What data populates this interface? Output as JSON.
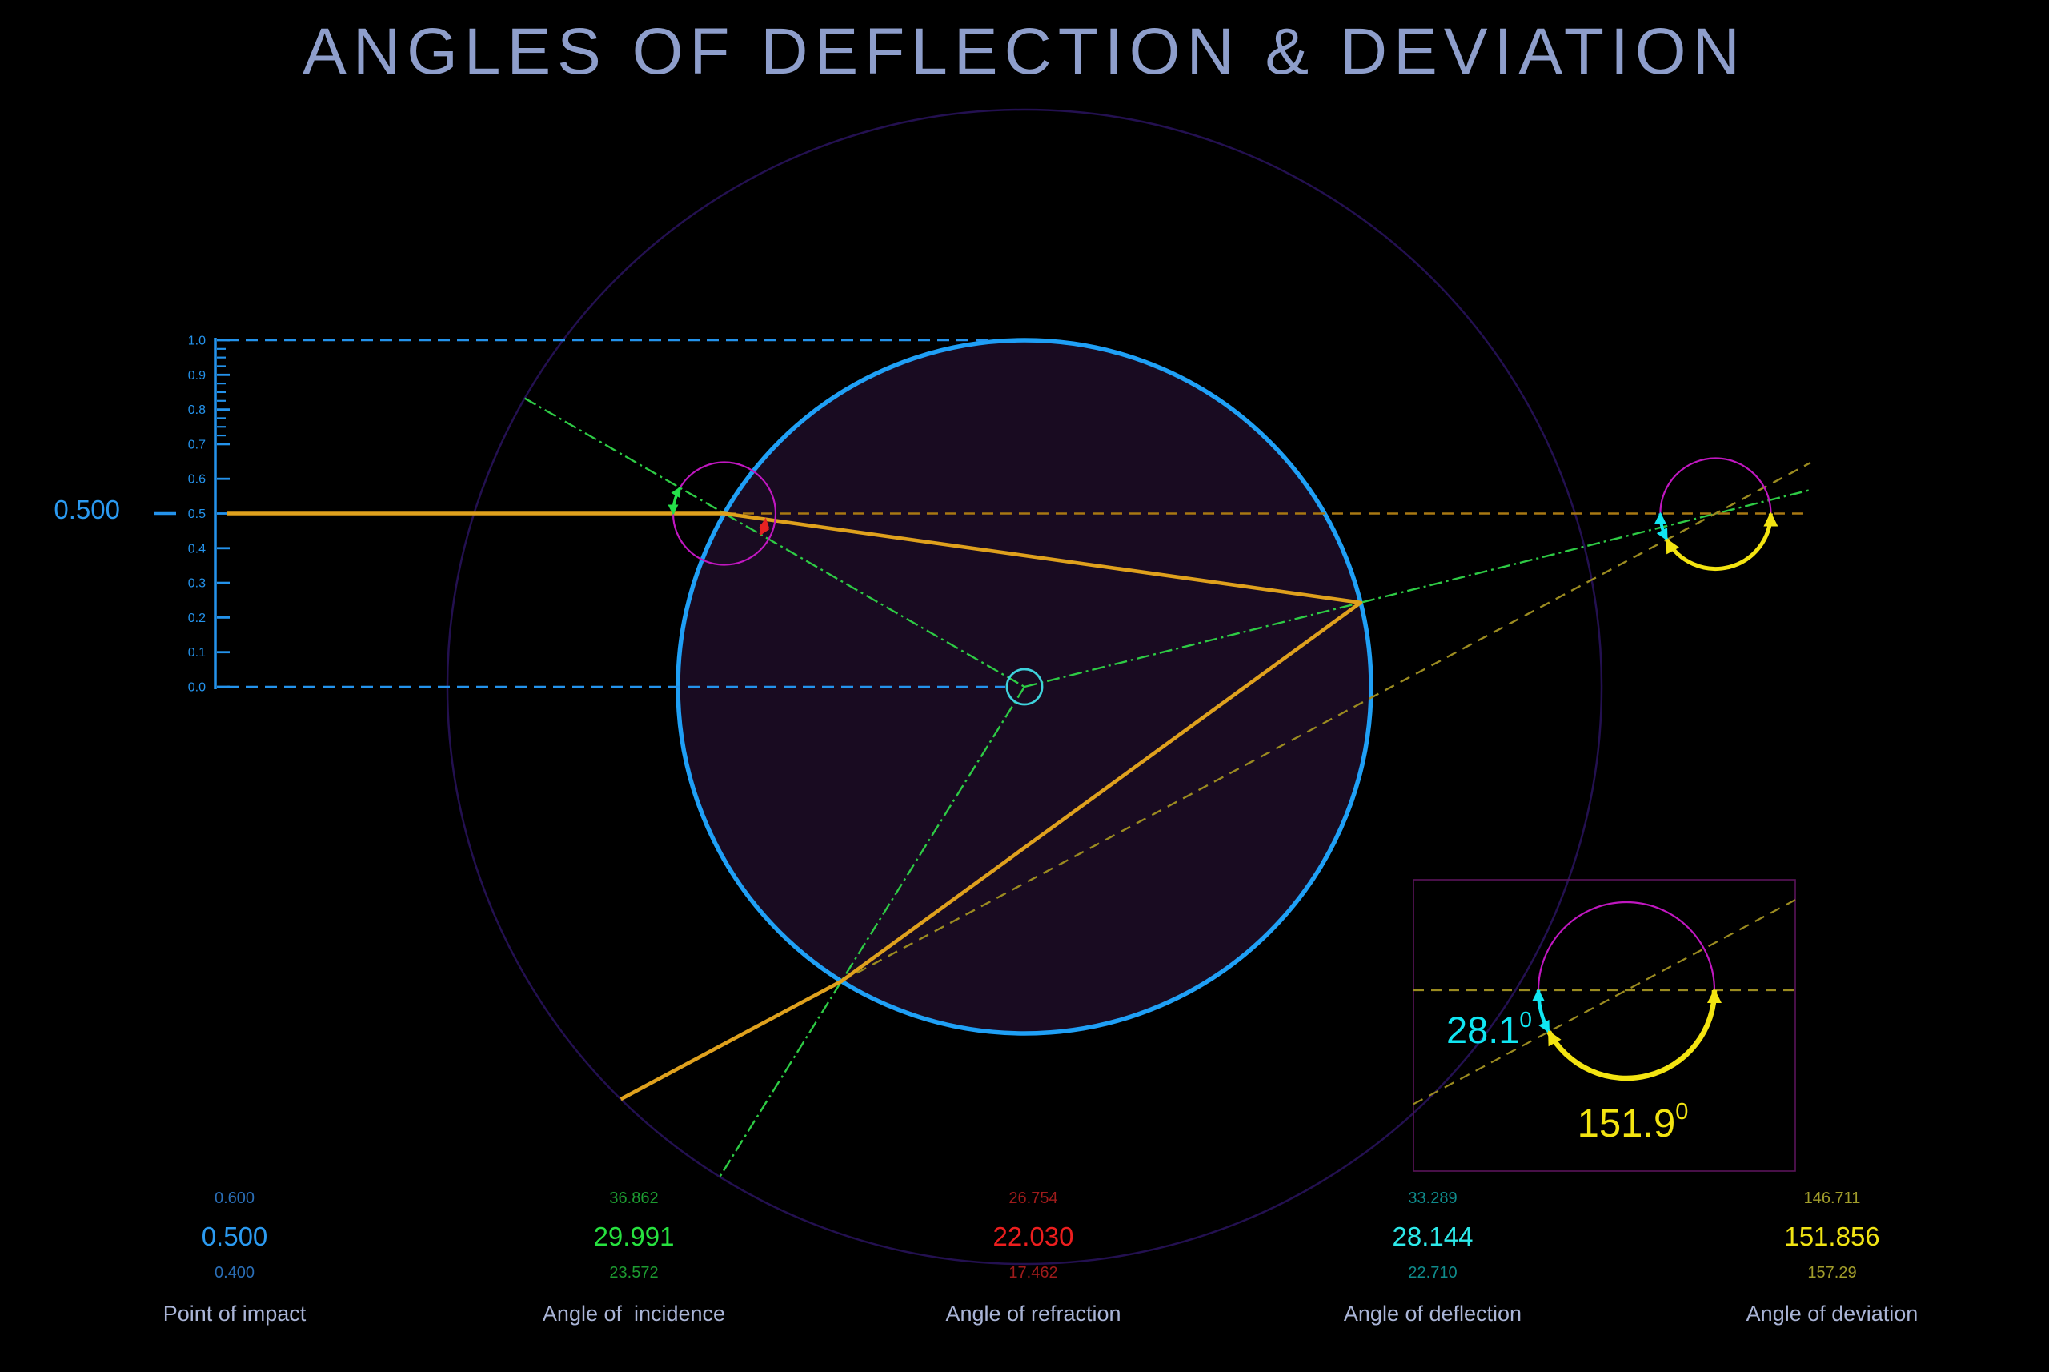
{
  "title": "ANGLES OF DEFLECTION & DEVIATION",
  "scale": {
    "tick_labels": [
      "1.0",
      "0.9",
      "0.8",
      "0.7",
      "0.6",
      "0.5",
      "0.4",
      "0.3",
      "0.2",
      "0.1",
      "0.0"
    ],
    "minor_tick_step": 0.025,
    "minor_tick_range": [
      0.7,
      1.0
    ],
    "current_value_label": "0.500"
  },
  "chart_data": {
    "type": "ray-diagram",
    "title": "ANGLES OF DEFLECTION & DEVIATION",
    "description": "Light ray entering a spherical drop at impact parameter 0.5: refraction at entry, one internal reflection, refraction at exit. Normals shown as green dash-dot lines; deflection (cyan) and deviation (yellow) angles measured between the undeviated path and the exit ray extension.",
    "point_of_impact": 0.5,
    "angles_deg": {
      "incidence": 29.991,
      "refraction": 22.03,
      "deflection": 28.144,
      "deviation": 151.856
    },
    "readouts": [
      {
        "id": "impact",
        "above": "0.600",
        "value": "0.500",
        "below": "0.400",
        "label": "Point of impact",
        "color": "#2b9af0",
        "dim_color": "#2a6fb8"
      },
      {
        "id": "incidence",
        "above": "36.862",
        "value": "29.991",
        "below": "23.572",
        "label": "Angle of  incidence",
        "color": "#27e23f",
        "dim_color": "#1d9b31"
      },
      {
        "id": "refraction",
        "above": "26.754",
        "value": "22.030",
        "below": "17.462",
        "label": "Angle of refraction",
        "color": "#ed1e1e",
        "dim_color": "#9e1b1b"
      },
      {
        "id": "deflection",
        "above": "33.289",
        "value": "28.144",
        "below": "22.710",
        "label": "Angle of deflection",
        "color": "#2de9e9",
        "dim_color": "#0f8b8b"
      },
      {
        "id": "deviation",
        "above": "146.711",
        "value": "151.856",
        "below": "157.29",
        "label": "Angle of deviation",
        "color": "#f1e414",
        "dim_color": "#a19d2b"
      }
    ],
    "inset": {
      "deflection_label": "28.1",
      "deviation_label": "151.9",
      "degree_sup": "0"
    }
  },
  "colors": {
    "background": "#000000",
    "title_text": "#8e9ecb",
    "label_text": "#a9b4d6",
    "axis_blue": "#2493ec",
    "drop_stroke": "#1fa0f6",
    "drop_fill": "#190b21",
    "outer_circle": "#231050",
    "ray_orange": "#dfa11d",
    "ray_orange_dashed": "#a87812",
    "deviation_dashed": "#9b8b20",
    "normal_green": "#2ecb45",
    "incidence_arc": "#25e04a",
    "refraction_arc": "#e62222",
    "protractor_magenta": "#c017c0",
    "center_circle": "#3fd2dc",
    "deflection_cyan": "#10e6f2",
    "deviation_yellow": "#f3e411",
    "inset_border": "#5a145a"
  }
}
